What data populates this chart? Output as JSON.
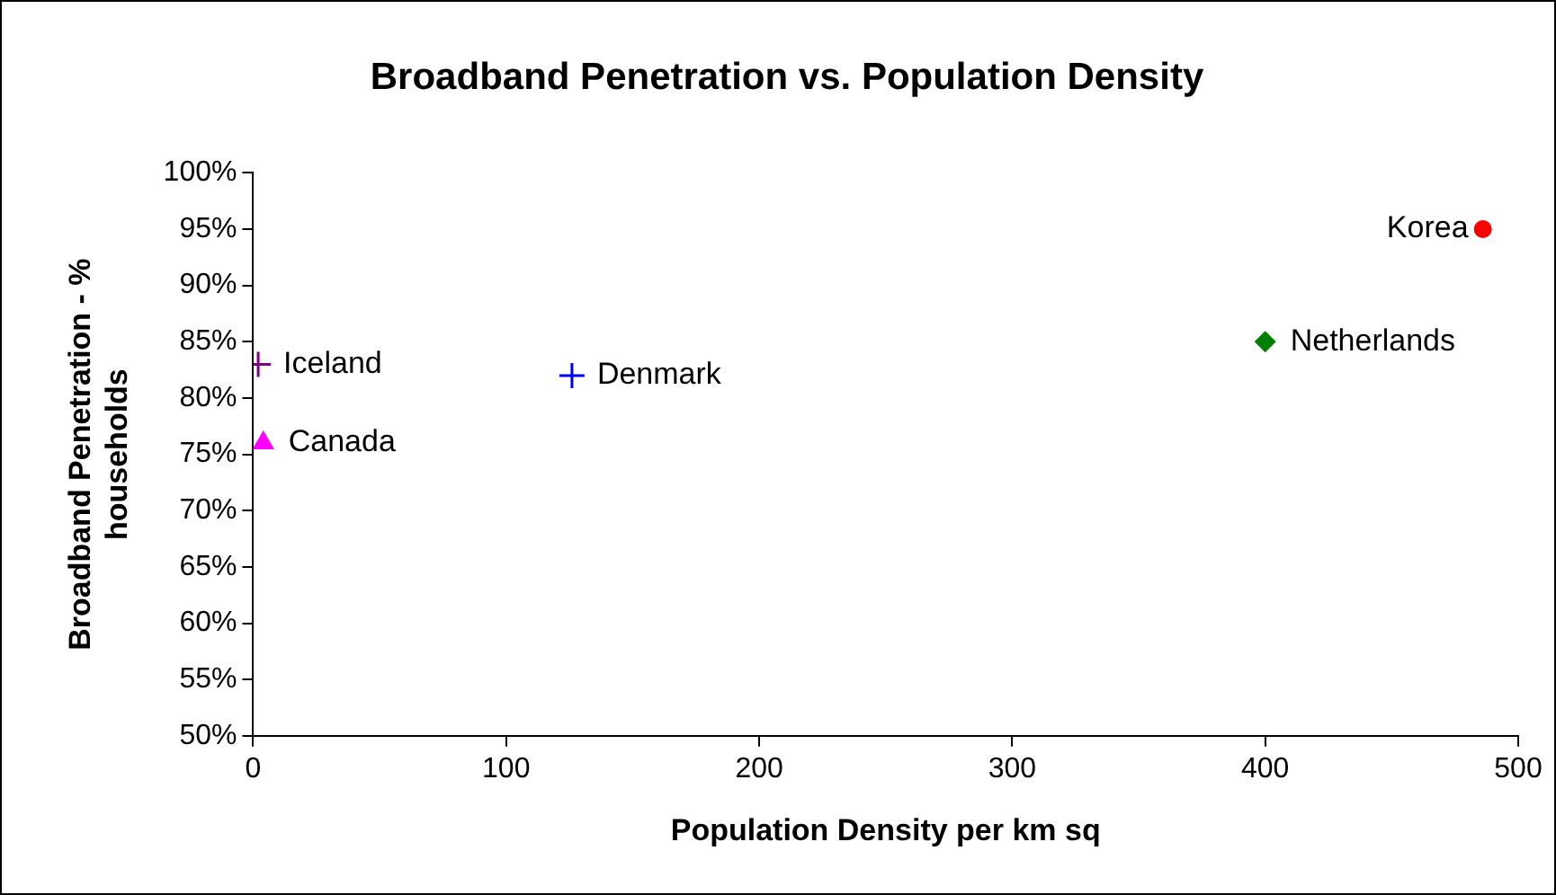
{
  "chart_data": {
    "type": "scatter",
    "title": "Broadband Penetration vs. Population Density",
    "xlabel": "Population Density per km sq",
    "ylabel": "Broadband Penetration - % households",
    "series": [
      {
        "name": "Korea",
        "color": "#ff0000",
        "marker": "circle",
        "x": [
          486
        ],
        "values": [
          95
        ]
      },
      {
        "name": "Netherlands",
        "color": "#008000",
        "marker": "diamond",
        "x": [
          400
        ],
        "values": [
          85
        ]
      },
      {
        "name": "Denmark",
        "color": "#0000ff",
        "marker": "cross",
        "x": [
          126
        ],
        "values": [
          82
        ]
      },
      {
        "name": "Iceland",
        "color": "#800080",
        "marker": "cross",
        "x": [
          2
        ],
        "values": [
          83
        ]
      },
      {
        "name": "Canada",
        "color": "#ff00ff",
        "marker": "triangle",
        "x": [
          4
        ],
        "values": [
          76
        ]
      }
    ],
    "xlim": [
      0,
      500
    ],
    "xticks": [
      0,
      100,
      200,
      300,
      400,
      500
    ],
    "ylim": [
      50,
      100
    ],
    "yticks": [
      {
        "value": 50,
        "label": "50%"
      },
      {
        "value": 55,
        "label": "55%"
      },
      {
        "value": 60,
        "label": "60%"
      },
      {
        "value": 65,
        "label": "65%"
      },
      {
        "value": 70,
        "label": "70%"
      },
      {
        "value": 75,
        "label": "75%"
      },
      {
        "value": 80,
        "label": "80%"
      },
      {
        "value": 85,
        "label": "85%"
      },
      {
        "value": 90,
        "label": "90%"
      },
      {
        "value": 95,
        "label": "95%"
      },
      {
        "value": 100,
        "label": "100%"
      }
    ],
    "grid": false,
    "legend": false
  }
}
